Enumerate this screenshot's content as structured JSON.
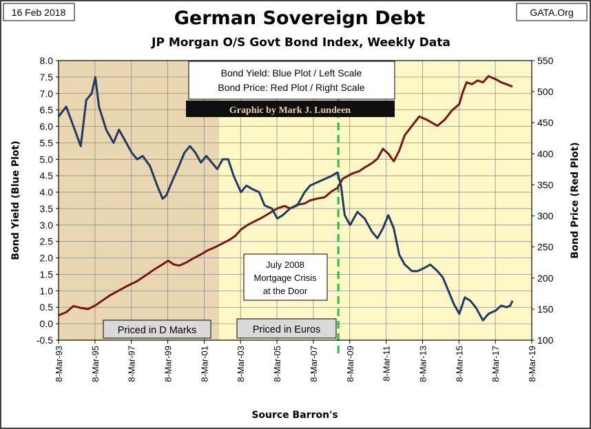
{
  "header": {
    "date_label": "16 Feb 2018",
    "source_site": "GATA.Org"
  },
  "chart_data": {
    "type": "line",
    "title": "German Sovereign Debt",
    "subtitle": "JP Morgan O/S Govt Bond Index, Weekly Data",
    "xlabel": "Source Barron's",
    "ylabel_left": "Bond  Yield  (Blue Plot)",
    "ylabel_right": "Bond Price  (Red Plot)",
    "x_range": [
      1993.18,
      2019.18
    ],
    "ylim_left": [
      -0.5,
      8.0
    ],
    "ylim_right": [
      100,
      550
    ],
    "y_ticks_left": [
      "-0.5",
      "0.0",
      "0.5",
      "1.0",
      "1.5",
      "2.0",
      "2.5",
      "3.0",
      "3.5",
      "4.0",
      "4.5",
      "5.0",
      "5.5",
      "6.0",
      "6.5",
      "7.0",
      "7.5",
      "8.0"
    ],
    "y_ticks_right": [
      "100",
      "150",
      "200",
      "250",
      "300",
      "350",
      "400",
      "450",
      "500",
      "550"
    ],
    "x_ticks": [
      "8-Mar-93",
      "8-Mar-95",
      "8-Mar-97",
      "8-Mar-99",
      "8-Mar-01",
      "8-Mar-03",
      "8-Mar-05",
      "8-Mar-07",
      "8-Mar-09",
      "8-Mar-11",
      "8-Mar-13",
      "8-Mar-15",
      "8-Mar-17",
      "8-Mar-19"
    ],
    "grid": true,
    "series": [
      {
        "name": "Bond Yield",
        "axis": "left",
        "color": "#1f3864",
        "x": [
          1993.18,
          1993.6,
          1994.0,
          1994.4,
          1994.7,
          1995.0,
          1995.2,
          1995.4,
          1995.8,
          1996.2,
          1996.5,
          1996.8,
          1997.2,
          1997.5,
          1997.8,
          1998.2,
          1998.6,
          1998.9,
          1999.1,
          1999.4,
          1999.8,
          2000.1,
          2000.4,
          2000.7,
          2001.0,
          2001.3,
          2001.6,
          2001.9,
          2002.2,
          2002.5,
          2002.8,
          2003.2,
          2003.5,
          2003.8,
          2004.2,
          2004.5,
          2004.9,
          2005.2,
          2005.5,
          2005.9,
          2006.3,
          2006.7,
          2007.0,
          2007.4,
          2007.8,
          2008.2,
          2008.5,
          2008.7,
          2008.9,
          2009.2,
          2009.6,
          2010.0,
          2010.4,
          2010.7,
          2011.0,
          2011.3,
          2011.6,
          2011.9,
          2012.2,
          2012.6,
          2012.9,
          2013.3,
          2013.6,
          2014.0,
          2014.3,
          2014.6,
          2014.9,
          2015.2,
          2015.5,
          2015.8,
          2016.1,
          2016.5,
          2016.8,
          2017.2,
          2017.5,
          2017.8,
          2018.0,
          2018.12
        ],
        "values": [
          6.3,
          6.6,
          6.0,
          5.4,
          6.8,
          7.0,
          7.5,
          6.6,
          5.9,
          5.5,
          5.9,
          5.6,
          5.2,
          5.0,
          5.1,
          4.8,
          4.2,
          3.8,
          3.9,
          4.3,
          4.8,
          5.2,
          5.4,
          5.2,
          4.9,
          5.1,
          4.9,
          4.7,
          5.0,
          5.0,
          4.5,
          4.0,
          4.2,
          4.1,
          4.0,
          3.6,
          3.5,
          3.2,
          3.3,
          3.5,
          3.6,
          4.0,
          4.2,
          4.3,
          4.4,
          4.5,
          4.6,
          4.2,
          3.3,
          3.0,
          3.4,
          3.2,
          2.8,
          2.6,
          2.9,
          3.3,
          2.9,
          2.1,
          1.8,
          1.6,
          1.6,
          1.7,
          1.8,
          1.6,
          1.4,
          1.0,
          0.6,
          0.3,
          0.8,
          0.7,
          0.5,
          0.1,
          0.3,
          0.4,
          0.55,
          0.5,
          0.55,
          0.7
        ]
      },
      {
        "name": "Bond Price",
        "axis": "right",
        "color": "#7b1414",
        "x": [
          1993.18,
          1993.6,
          1994.0,
          1994.4,
          1994.8,
          1995.2,
          1995.6,
          1996.0,
          1996.5,
          1997.0,
          1997.5,
          1998.0,
          1998.5,
          1998.9,
          1999.2,
          1999.5,
          1999.8,
          2000.2,
          2000.6,
          2001.0,
          2001.4,
          2001.8,
          2002.2,
          2002.6,
          2002.9,
          2003.2,
          2003.6,
          2004.0,
          2004.4,
          2004.8,
          2005.2,
          2005.6,
          2005.9,
          2006.3,
          2006.7,
          2007.0,
          2007.4,
          2007.8,
          2008.2,
          2008.5,
          2008.8,
          2009.0,
          2009.3,
          2009.7,
          2010.0,
          2010.4,
          2010.7,
          2011.0,
          2011.3,
          2011.6,
          2011.9,
          2012.2,
          2012.6,
          2013.0,
          2013.4,
          2013.7,
          2014.0,
          2014.4,
          2014.8,
          2015.2,
          2015.4,
          2015.6,
          2015.9,
          2016.2,
          2016.5,
          2016.8,
          2017.2,
          2017.5,
          2017.8,
          2018.12
        ],
        "values": [
          140,
          145,
          155,
          152,
          150,
          156,
          164,
          172,
          180,
          188,
          195,
          205,
          215,
          222,
          228,
          222,
          220,
          225,
          232,
          238,
          245,
          250,
          256,
          262,
          268,
          278,
          286,
          292,
          298,
          305,
          312,
          316,
          312,
          318,
          320,
          325,
          328,
          330,
          340,
          345,
          360,
          363,
          368,
          372,
          378,
          385,
          392,
          408,
          400,
          388,
          405,
          430,
          445,
          460,
          455,
          450,
          445,
          455,
          470,
          480,
          500,
          515,
          512,
          518,
          515,
          525,
          520,
          515,
          512,
          508
        ]
      }
    ],
    "legend_lines": [
      "Bond Yield: Blue Plot / Left Scale",
      "Bond Price: Red Plot / Right Scale"
    ],
    "credit": "Graphic by Mark J. Lundeen",
    "annotations": {
      "crisis_lines": [
        "July 2008",
        "Mortgage Crisis",
        "at the Door"
      ],
      "crisis_x": 2008.55,
      "dmark_label": "Priced in D Marks",
      "euro_label": "Priced in Euros",
      "dmark_period": [
        1993.18,
        2002.0
      ]
    },
    "colors": {
      "dmark_region": "#e9d7b1",
      "euro_region": "#fdf8c6",
      "yield_line": "#1f3864",
      "price_line": "#7b1414",
      "crisis_line": "#2db84a",
      "credit_bg": "#0f0f0f",
      "label_box": "#d9d9d9"
    }
  }
}
